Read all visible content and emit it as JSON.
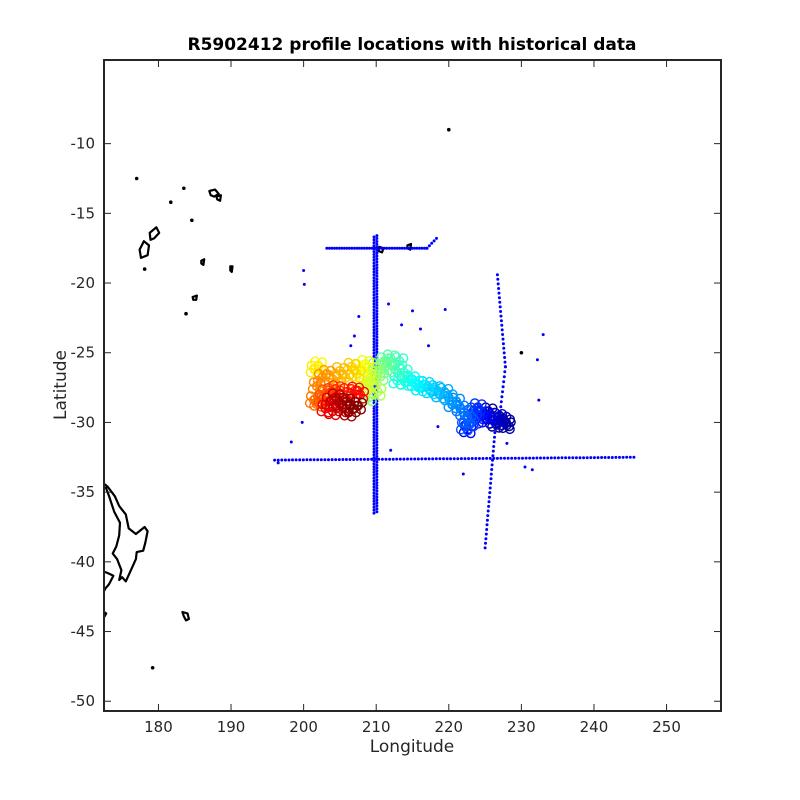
{
  "chart_data": {
    "type": "scatter",
    "title": "R5902412 profile locations with historical data",
    "xlabel": "Longitude",
    "ylabel": "Latitude",
    "xlim": [
      172.5,
      257.5
    ],
    "ylim": [
      -50.7,
      -4.0
    ],
    "xticks": [
      180,
      190,
      200,
      210,
      220,
      230,
      240,
      250
    ],
    "yticks": [
      -10,
      -15,
      -20,
      -25,
      -30,
      -35,
      -40,
      -45,
      -50
    ],
    "grid": false,
    "legend": "none",
    "colors": {
      "historical": "#0000ff",
      "coast": "#000000",
      "axes": "#262626"
    },
    "historical_data": {
      "color": "#0000ff",
      "lines": [
        {
          "x0": 196.0,
          "y0": -32.7,
          "x1": 245.5,
          "y1": -32.5,
          "n": 100
        },
        {
          "x0": 209.7,
          "y0": -16.7,
          "x1": 209.7,
          "y1": -36.5,
          "n": 95
        },
        {
          "x0": 210.1,
          "y0": -16.6,
          "x1": 210.1,
          "y1": -36.4,
          "n": 95
        },
        {
          "x0": 203.2,
          "y0": -17.5,
          "x1": 217.0,
          "y1": -17.5,
          "n": 40
        },
        {
          "x0": 217.0,
          "y0": -17.5,
          "x1": 218.3,
          "y1": -16.8,
          "n": 4
        },
        {
          "x0": 226.7,
          "y0": -19.4,
          "x1": 227.8,
          "y1": -26.0,
          "n": 20
        },
        {
          "x0": 227.8,
          "y0": -26.0,
          "x1": 227.0,
          "y1": -29.6,
          "n": 10
        },
        {
          "x0": 226.4,
          "y0": -30.4,
          "x1": 225.0,
          "y1": -39.0,
          "n": 26
        }
      ],
      "points": [
        [
          200.0,
          -19.1
        ],
        [
          200.1,
          -20.1
        ],
        [
          199.8,
          -30.0
        ],
        [
          198.3,
          -31.4
        ],
        [
          196.5,
          -32.9
        ],
        [
          211.7,
          -21.5
        ],
        [
          212.0,
          -32.0
        ],
        [
          213.5,
          -23.0
        ],
        [
          215.0,
          -22.0
        ],
        [
          216.1,
          -23.3
        ],
        [
          217.2,
          -24.5
        ],
        [
          219.5,
          -21.9
        ],
        [
          222.0,
          -33.7
        ],
        [
          230.5,
          -33.2
        ],
        [
          231.5,
          -33.4
        ],
        [
          232.2,
          -25.5
        ],
        [
          232.4,
          -28.4
        ],
        [
          233.0,
          -23.7
        ],
        [
          207.0,
          -23.8
        ],
        [
          206.5,
          -24.5
        ],
        [
          207.6,
          -22.4
        ],
        [
          228.0,
          -31.5
        ],
        [
          218.5,
          -30.3
        ]
      ]
    },
    "profile_track": {
      "colormap": "jet",
      "points": [
        [
          207.5,
          -28.8
        ],
        [
          206.8,
          -29.0
        ],
        [
          205.9,
          -28.5
        ],
        [
          206.2,
          -29.3
        ],
        [
          205.0,
          -28.6
        ],
        [
          204.4,
          -28.2
        ],
        [
          205.4,
          -29.0
        ],
        [
          203.6,
          -28.5
        ],
        [
          204.0,
          -29.2
        ],
        [
          203.0,
          -29.0
        ],
        [
          207.8,
          -28.0
        ],
        [
          207.1,
          -27.7
        ],
        [
          206.0,
          -27.8
        ],
        [
          205.5,
          -28.0
        ],
        [
          204.5,
          -27.6
        ],
        [
          203.8,
          -27.8
        ],
        [
          202.6,
          -28.3
        ],
        [
          203.0,
          -27.9
        ],
        [
          202.0,
          -28.6
        ],
        [
          201.4,
          -28.4
        ],
        [
          201.8,
          -27.4
        ],
        [
          202.5,
          -26.8
        ],
        [
          203.2,
          -26.5
        ],
        [
          204.0,
          -26.9
        ],
        [
          205.0,
          -26.3
        ],
        [
          205.8,
          -26.8
        ],
        [
          206.6,
          -26.0
        ],
        [
          207.3,
          -26.5
        ],
        [
          201.5,
          -26.2
        ],
        [
          202.0,
          -25.9
        ],
        [
          207.8,
          -26.1
        ],
        [
          208.5,
          -25.8
        ],
        [
          208.8,
          -26.7
        ],
        [
          208.2,
          -27.4
        ],
        [
          209.0,
          -27.6
        ],
        [
          209.6,
          -27.0
        ],
        [
          210.2,
          -27.8
        ],
        [
          209.4,
          -26.3
        ],
        [
          210.0,
          -26.0
        ],
        [
          209.0,
          -28.2
        ],
        [
          210.6,
          -26.7
        ],
        [
          211.3,
          -26.0
        ],
        [
          211.1,
          -25.6
        ],
        [
          212.0,
          -25.4
        ],
        [
          212.6,
          -26.2
        ],
        [
          213.2,
          -25.6
        ],
        [
          213.8,
          -26.4
        ],
        [
          212.9,
          -27.0
        ],
        [
          214.0,
          -27.1
        ],
        [
          214.8,
          -26.9
        ],
        [
          215.4,
          -27.2
        ],
        [
          216.0,
          -27.5
        ],
        [
          216.8,
          -27.3
        ],
        [
          217.5,
          -27.7
        ],
        [
          218.2,
          -27.6
        ],
        [
          218.8,
          -28.0
        ],
        [
          219.4,
          -27.8
        ],
        [
          220.0,
          -28.2
        ],
        [
          220.5,
          -28.7
        ],
        [
          221.0,
          -28.5
        ],
        [
          221.6,
          -29.0
        ],
        [
          222.1,
          -29.3
        ],
        [
          222.6,
          -29.8
        ],
        [
          222.2,
          -30.3
        ],
        [
          223.0,
          -30.0
        ],
        [
          223.5,
          -29.2
        ],
        [
          224.0,
          -28.9
        ],
        [
          223.7,
          -29.8
        ],
        [
          224.3,
          -29.5
        ],
        [
          222.6,
          -30.5
        ],
        [
          224.7,
          -29.4
        ],
        [
          225.2,
          -29.8
        ],
        [
          225.8,
          -29.5
        ],
        [
          226.2,
          -29.9
        ],
        [
          226.8,
          -29.6
        ],
        [
          227.4,
          -29.8
        ],
        [
          227.9,
          -30.0
        ],
        [
          228.0,
          -30.2
        ],
        [
          225.5,
          -29.2
        ],
        [
          226.5,
          -30.1
        ]
      ]
    },
    "coastlines": [
      {
        "closed": false,
        "points": [
          [
            172.5,
            -34.4
          ],
          [
            173.0,
            -34.6
          ],
          [
            174.0,
            -35.3
          ],
          [
            174.6,
            -36.0
          ],
          [
            175.5,
            -36.6
          ],
          [
            175.9,
            -37.6
          ],
          [
            176.9,
            -38.0
          ],
          [
            178.1,
            -37.5
          ],
          [
            178.5,
            -37.8
          ],
          [
            178.2,
            -38.6
          ],
          [
            177.9,
            -39.2
          ],
          [
            177.0,
            -39.3
          ],
          [
            176.9,
            -39.8
          ],
          [
            176.2,
            -40.6
          ],
          [
            175.5,
            -41.4
          ],
          [
            175.0,
            -41.1
          ],
          [
            174.6,
            -41.3
          ],
          [
            174.9,
            -40.6
          ],
          [
            174.3,
            -39.8
          ],
          [
            173.7,
            -39.4
          ],
          [
            174.2,
            -38.9
          ],
          [
            174.6,
            -38.1
          ],
          [
            174.7,
            -37.2
          ],
          [
            173.9,
            -36.4
          ],
          [
            173.2,
            -35.3
          ],
          [
            172.7,
            -34.6
          ]
        ]
      },
      {
        "closed": false,
        "points": [
          [
            172.5,
            -40.7
          ],
          [
            173.0,
            -40.8
          ],
          [
            173.8,
            -41.0
          ],
          [
            173.2,
            -41.6
          ],
          [
            172.7,
            -41.9
          ],
          [
            172.5,
            -42.1
          ]
        ]
      },
      {
        "closed": false,
        "points": [
          [
            172.5,
            -43.6
          ],
          [
            172.8,
            -43.7
          ],
          [
            172.6,
            -43.9
          ],
          [
            172.5,
            -43.8
          ]
        ]
      },
      {
        "closed": true,
        "points": [
          [
            183.3,
            -43.6
          ],
          [
            184.0,
            -43.7
          ],
          [
            184.2,
            -44.1
          ],
          [
            183.8,
            -44.2
          ],
          [
            183.5,
            -43.9
          ]
        ]
      },
      {
        "closed": true,
        "points": [
          [
            178.0,
            -17.0
          ],
          [
            178.7,
            -17.3
          ],
          [
            178.5,
            -18.0
          ],
          [
            177.6,
            -18.2
          ],
          [
            177.4,
            -17.6
          ]
        ]
      },
      {
        "closed": true,
        "points": [
          [
            178.8,
            -16.4
          ],
          [
            179.7,
            -16.0
          ],
          [
            180.1,
            -16.4
          ],
          [
            179.4,
            -16.8
          ],
          [
            178.9,
            -16.9
          ]
        ]
      },
      {
        "closed": true,
        "points": [
          [
            187.0,
            -13.4
          ],
          [
            187.8,
            -13.3
          ],
          [
            188.3,
            -13.6
          ],
          [
            187.7,
            -13.8
          ],
          [
            187.2,
            -13.7
          ]
        ]
      },
      {
        "closed": true,
        "points": [
          [
            188.0,
            -13.8
          ],
          [
            188.6,
            -13.7
          ],
          [
            188.5,
            -14.1
          ],
          [
            188.1,
            -14.0
          ]
        ]
      },
      {
        "closed": true,
        "points": [
          [
            184.7,
            -21.0
          ],
          [
            185.3,
            -20.9
          ],
          [
            185.2,
            -21.2
          ],
          [
            184.8,
            -21.2
          ]
        ]
      },
      {
        "closed": true,
        "points": [
          [
            185.9,
            -18.4
          ],
          [
            186.3,
            -18.3
          ],
          [
            186.2,
            -18.7
          ],
          [
            185.9,
            -18.6
          ]
        ]
      },
      {
        "closed": true,
        "points": [
          [
            189.9,
            -18.8
          ],
          [
            190.2,
            -18.8
          ],
          [
            190.1,
            -19.2
          ],
          [
            189.9,
            -19.1
          ]
        ]
      },
      {
        "closed": true,
        "points": [
          [
            210.4,
            -17.4
          ],
          [
            211.0,
            -17.5
          ],
          [
            210.8,
            -17.8
          ],
          [
            210.3,
            -17.7
          ]
        ]
      },
      {
        "closed": true,
        "points": [
          [
            214.3,
            -17.3
          ],
          [
            214.8,
            -17.2
          ],
          [
            214.7,
            -17.6
          ],
          [
            214.3,
            -17.5
          ]
        ]
      }
    ],
    "islands": [
      [
        177.0,
        -12.5
      ],
      [
        181.7,
        -14.2
      ],
      [
        183.5,
        -13.2
      ],
      [
        184.6,
        -15.5
      ],
      [
        183.8,
        -22.2
      ],
      [
        178.1,
        -19.0
      ],
      [
        220.0,
        -9.0
      ],
      [
        230.0,
        -25.0
      ],
      [
        179.2,
        -47.6
      ],
      [
        204.6,
        -27.7
      ]
    ]
  }
}
